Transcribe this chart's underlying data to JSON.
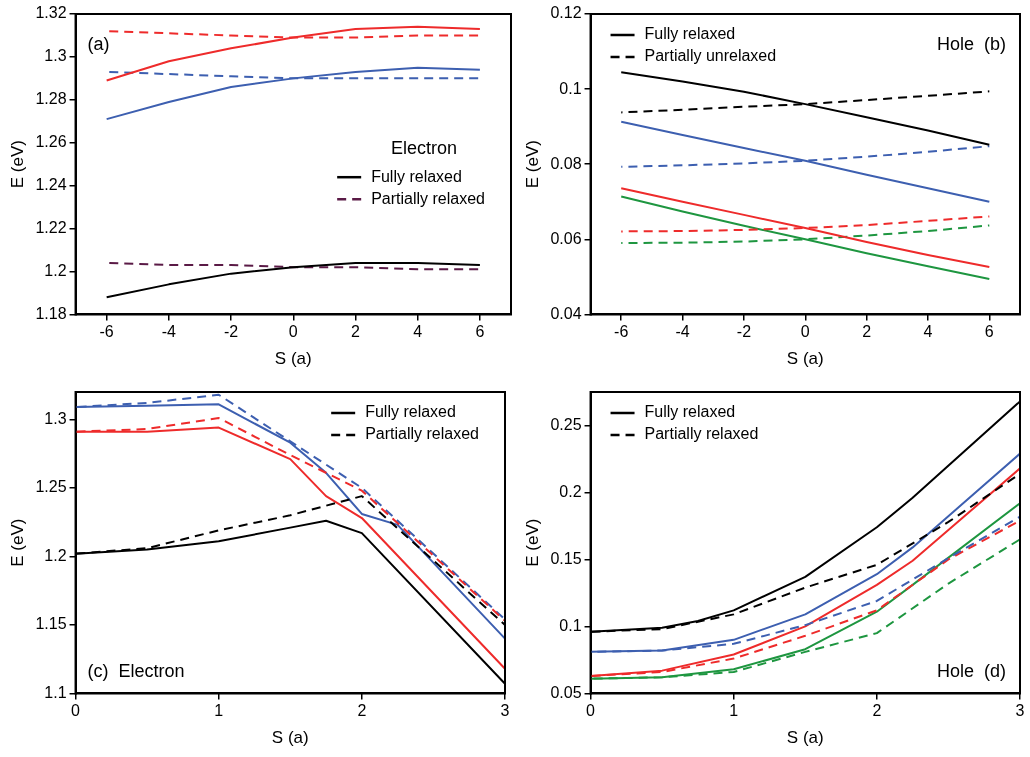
{
  "chart_data": [
    {
      "type": "line",
      "xlabel": "S (a)",
      "ylabel": "E (eV)",
      "xlim": [
        -7,
        7
      ],
      "ylim": [
        1.18,
        1.32
      ],
      "xticks": [
        -6,
        -4,
        -2,
        0,
        2,
        4,
        6
      ],
      "yticks": [
        1.18,
        1.2,
        1.22,
        1.24,
        1.26,
        1.28,
        1.3,
        1.32
      ],
      "legend": "right",
      "legend_title": "Electron",
      "annotations": [
        "(a)"
      ],
      "series": [
        {
          "name": "Fully relaxed",
          "color": "#000000",
          "line_style": "solid",
          "x": [
            -6,
            -4,
            -2,
            0,
            2,
            4,
            6
          ],
          "values": [
            1.188,
            1.194,
            1.199,
            1.202,
            1.204,
            1.204,
            1.203
          ]
        },
        {
          "name": "Partially relaxed",
          "color": "#5a1a46",
          "line_style": "dashed",
          "x": [
            -6,
            -4,
            -2,
            0,
            2,
            4,
            6
          ],
          "values": [
            1.204,
            1.203,
            1.203,
            1.202,
            1.202,
            1.201,
            1.201
          ]
        },
        {
          "color": "#ee2b2b",
          "line_style": "solid",
          "x": [
            -6,
            -4,
            -2,
            0,
            2,
            4,
            6
          ],
          "values": [
            1.289,
            1.298,
            1.304,
            1.309,
            1.313,
            1.314,
            1.313
          ]
        },
        {
          "color": "#ee2b2b",
          "line_style": "dashed",
          "x": [
            -6,
            -4,
            -2,
            0,
            2,
            4,
            6
          ],
          "values": [
            1.312,
            1.311,
            1.31,
            1.309,
            1.309,
            1.31,
            1.31
          ]
        },
        {
          "color": "#3d5fb0",
          "line_style": "solid",
          "x": [
            -6,
            -4,
            -2,
            0,
            2,
            4,
            6
          ],
          "values": [
            1.271,
            1.279,
            1.286,
            1.29,
            1.293,
            1.295,
            1.294
          ]
        },
        {
          "color": "#3d5fb0",
          "line_style": "dashed",
          "x": [
            -6,
            -4,
            -2,
            0,
            2,
            4,
            6
          ],
          "values": [
            1.293,
            1.292,
            1.291,
            1.29,
            1.29,
            1.29,
            1.29
          ]
        }
      ]
    },
    {
      "type": "line",
      "xlabel": "S (a)",
      "ylabel": "E (eV)",
      "xlim": [
        -7,
        7
      ],
      "ylim": [
        0.04,
        0.12
      ],
      "xticks": [
        -6,
        -4,
        -2,
        0,
        2,
        4,
        6
      ],
      "yticks": [
        0.04,
        0.06,
        0.08,
        0.1,
        0.12
      ],
      "legend": "top left",
      "annotations": [
        "Hole  (b)"
      ],
      "series": [
        {
          "name": "Fully relaxed",
          "color": "#000000",
          "line_style": "solid",
          "x": [
            -6,
            -4,
            -2,
            0,
            2,
            4,
            6
          ],
          "values": [
            0.1045,
            0.102,
            0.0993,
            0.096,
            0.0925,
            0.089,
            0.0852
          ]
        },
        {
          "name": "Partially unrelaxed",
          "color": "#000000",
          "line_style": "dashed",
          "x": [
            -6,
            -4,
            -2,
            0,
            2,
            4,
            6
          ],
          "values": [
            0.0938,
            0.0945,
            0.0953,
            0.096,
            0.0971,
            0.0982,
            0.0994
          ]
        },
        {
          "color": "#3d5fb0",
          "line_style": "solid",
          "x": [
            -6,
            -4,
            -2,
            0,
            2,
            4,
            6
          ],
          "values": [
            0.0913,
            0.0878,
            0.0843,
            0.0809,
            0.0772,
            0.0736,
            0.07
          ]
        },
        {
          "color": "#3d5fb0",
          "line_style": "dashed",
          "x": [
            -6,
            -4,
            -2,
            0,
            2,
            4,
            6
          ],
          "values": [
            0.0793,
            0.0797,
            0.0802,
            0.0809,
            0.082,
            0.0833,
            0.0848
          ]
        },
        {
          "color": "#ee2b2b",
          "line_style": "solid",
          "x": [
            -6,
            -4,
            -2,
            0,
            2,
            4,
            6
          ],
          "values": [
            0.0736,
            0.07,
            0.0665,
            0.063,
            0.0593,
            0.0558,
            0.0526
          ]
        },
        {
          "color": "#ee2b2b",
          "line_style": "dashed",
          "x": [
            -6,
            -4,
            -2,
            0,
            2,
            4,
            6
          ],
          "values": [
            0.0621,
            0.0622,
            0.0625,
            0.063,
            0.0638,
            0.0649,
            0.0661
          ]
        },
        {
          "color": "#1e9640",
          "line_style": "solid",
          "x": [
            -6,
            -4,
            -2,
            0,
            2,
            4,
            6
          ],
          "values": [
            0.0714,
            0.0674,
            0.0636,
            0.06,
            0.0563,
            0.0528,
            0.0494
          ]
        },
        {
          "color": "#1e9640",
          "line_style": "dashed",
          "x": [
            -6,
            -4,
            -2,
            0,
            2,
            4,
            6
          ],
          "values": [
            0.059,
            0.0591,
            0.0594,
            0.06,
            0.061,
            0.0622,
            0.0637
          ]
        }
      ]
    },
    {
      "type": "line",
      "xlabel": "S (a)",
      "ylabel": "E (eV)",
      "xlim": [
        0,
        3
      ],
      "ylim": [
        1.1,
        1.32
      ],
      "xticks": [
        0,
        1,
        2,
        3
      ],
      "yticks": [
        1.1,
        1.15,
        1.2,
        1.25,
        1.3
      ],
      "legend": "top right",
      "annotations": [
        "(c)  Electron"
      ],
      "series": [
        {
          "name": "Fully relaxed",
          "color": "#000000",
          "line_style": "solid",
          "x": [
            0,
            0.5,
            1,
            1.5,
            1.75,
            2,
            3
          ],
          "values": [
            1.202,
            1.205,
            1.211,
            1.221,
            1.226,
            1.217,
            1.107
          ]
        },
        {
          "name": "Partially relaxed",
          "color": "#000000",
          "line_style": "dashed",
          "x": [
            0,
            0.5,
            1,
            1.5,
            2,
            3
          ],
          "values": [
            1.202,
            1.206,
            1.219,
            1.23,
            1.244,
            1.15
          ]
        },
        {
          "color": "#ee2b2b",
          "line_style": "solid",
          "x": [
            0,
            0.5,
            1,
            1.5,
            1.75,
            2,
            3
          ],
          "values": [
            1.291,
            1.291,
            1.294,
            1.271,
            1.244,
            1.228,
            1.118
          ]
        },
        {
          "color": "#ee2b2b",
          "line_style": "dashed",
          "x": [
            0,
            0.5,
            1,
            1.5,
            2,
            3
          ],
          "values": [
            1.291,
            1.293,
            1.301,
            1.274,
            1.248,
            1.153
          ]
        },
        {
          "color": "#3d5fb0",
          "line_style": "solid",
          "x": [
            0,
            0.5,
            1,
            1.5,
            1.75,
            2,
            2.25,
            3
          ],
          "values": [
            1.309,
            1.31,
            1.311,
            1.283,
            1.261,
            1.231,
            1.223,
            1.14
          ]
        },
        {
          "color": "#3d5fb0",
          "line_style": "dashed",
          "x": [
            0,
            0.5,
            1,
            1.5,
            2,
            3
          ],
          "values": [
            1.309,
            1.312,
            1.318,
            1.284,
            1.25,
            1.154
          ]
        }
      ]
    },
    {
      "type": "line",
      "xlabel": "S (a)",
      "ylabel": "E (eV)",
      "xlim": [
        0,
        3
      ],
      "ylim": [
        0.05,
        0.275
      ],
      "xticks": [
        0,
        1,
        2,
        3
      ],
      "yticks": [
        0.05,
        0.1,
        0.15,
        0.2,
        0.25
      ],
      "legend": "top left",
      "annotations": [
        "Hole  (d)"
      ],
      "series": [
        {
          "name": "Fully relaxed",
          "color": "#000000",
          "line_style": "solid",
          "x": [
            0,
            0.5,
            0.75,
            1,
            1.5,
            2,
            2.25,
            3
          ],
          "values": [
            0.096,
            0.099,
            0.104,
            0.112,
            0.137,
            0.174,
            0.196,
            0.268
          ]
        },
        {
          "name": "Partially relaxed",
          "color": "#000000",
          "line_style": "dashed",
          "x": [
            0,
            0.5,
            1,
            1.5,
            2,
            2.5,
            3
          ],
          "values": [
            0.096,
            0.098,
            0.109,
            0.129,
            0.146,
            0.178,
            0.214
          ]
        },
        {
          "color": "#3d5fb0",
          "line_style": "solid",
          "x": [
            0,
            0.5,
            1,
            1.5,
            2,
            2.25,
            3
          ],
          "values": [
            0.081,
            0.082,
            0.09,
            0.109,
            0.139,
            0.159,
            0.229
          ]
        },
        {
          "color": "#3d5fb0",
          "line_style": "dashed",
          "x": [
            0,
            0.5,
            1,
            1.5,
            2,
            2.5,
            3
          ],
          "values": [
            0.081,
            0.082,
            0.087,
            0.101,
            0.119,
            0.151,
            0.182
          ]
        },
        {
          "color": "#ee2b2b",
          "line_style": "solid",
          "x": [
            0,
            0.5,
            1,
            1.5,
            2,
            2.25,
            3
          ],
          "values": [
            0.063,
            0.067,
            0.079,
            0.1,
            0.131,
            0.149,
            0.218
          ]
        },
        {
          "color": "#ee2b2b",
          "line_style": "dashed",
          "x": [
            0,
            0.5,
            1,
            1.5,
            2,
            2.5,
            3
          ],
          "values": [
            0.063,
            0.066,
            0.076,
            0.093,
            0.112,
            0.15,
            0.179
          ]
        },
        {
          "color": "#1e9640",
          "line_style": "solid",
          "x": [
            0,
            0.5,
            1,
            1.5,
            2,
            2.25,
            3
          ],
          "values": [
            0.061,
            0.062,
            0.068,
            0.083,
            0.111,
            0.131,
            0.192
          ]
        },
        {
          "color": "#1e9640",
          "line_style": "dashed",
          "x": [
            0,
            0.5,
            1,
            1.5,
            2,
            2.5,
            3
          ],
          "values": [
            0.061,
            0.062,
            0.066,
            0.081,
            0.095,
            0.132,
            0.165
          ]
        }
      ]
    }
  ]
}
